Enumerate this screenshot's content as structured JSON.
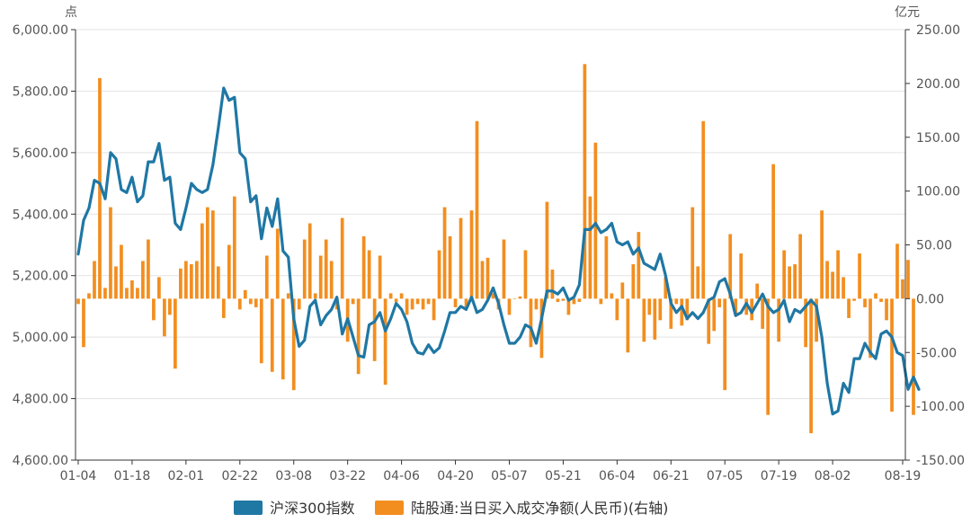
{
  "chart_data": {
    "type": "bar+line",
    "title": "",
    "left_axis": {
      "unit": "点",
      "ylim": [
        4600,
        6000
      ],
      "ticks": [
        "6,000.00",
        "5,800.00",
        "5,600.00",
        "5,400.00",
        "5,200.00",
        "5,000.00",
        "4,800.00",
        "4,600.00"
      ],
      "tick_values": [
        6000,
        5800,
        5600,
        5400,
        5200,
        5000,
        4800,
        4600
      ]
    },
    "right_axis": {
      "unit": "亿元",
      "ylim": [
        -150,
        250
      ],
      "ticks": [
        "250.00",
        "200.00",
        "150.00",
        "100.00",
        "50.00",
        "0.00",
        "-50.00",
        "-100.00",
        "-150.00"
      ],
      "tick_values": [
        250,
        200,
        150,
        100,
        50,
        0,
        -50,
        -100,
        -150
      ]
    },
    "x_ticks": [
      {
        "label": "01-04",
        "index": 0
      },
      {
        "label": "01-18",
        "index": 10
      },
      {
        "label": "02-01",
        "index": 20
      },
      {
        "label": "02-22",
        "index": 30
      },
      {
        "label": "03-08",
        "index": 40
      },
      {
        "label": "03-22",
        "index": 50
      },
      {
        "label": "04-06",
        "index": 60
      },
      {
        "label": "04-20",
        "index": 70
      },
      {
        "label": "05-07",
        "index": 80
      },
      {
        "label": "05-21",
        "index": 90
      },
      {
        "label": "06-04",
        "index": 100
      },
      {
        "label": "06-21",
        "index": 110
      },
      {
        "label": "07-05",
        "index": 120
      },
      {
        "label": "07-19",
        "index": 130
      },
      {
        "label": "08-02",
        "index": 140
      },
      {
        "label": "08-19",
        "index": 153
      }
    ],
    "n_points": 154,
    "series": [
      {
        "name": "沪深300指数",
        "type": "line",
        "axis": "left",
        "color": "#1f77a4",
        "values": [
          5270,
          5380,
          5420,
          5510,
          5500,
          5450,
          5600,
          5580,
          5480,
          5470,
          5520,
          5440,
          5460,
          5570,
          5570,
          5630,
          5510,
          5520,
          5370,
          5350,
          5420,
          5500,
          5480,
          5470,
          5480,
          5560,
          5680,
          5810,
          5770,
          5780,
          5600,
          5580,
          5440,
          5460,
          5320,
          5420,
          5360,
          5450,
          5280,
          5260,
          5060,
          4970,
          4990,
          5100,
          5120,
          5040,
          5070,
          5090,
          5130,
          5010,
          5060,
          5000,
          4940,
          4935,
          5040,
          5050,
          5080,
          5020,
          5060,
          5110,
          5090,
          5050,
          4980,
          4950,
          4945,
          4975,
          4950,
          4965,
          5020,
          5080,
          5080,
          5100,
          5090,
          5130,
          5080,
          5090,
          5120,
          5160,
          5110,
          5040,
          4980,
          4980,
          5000,
          5040,
          5030,
          4980,
          5060,
          5150,
          5150,
          5140,
          5160,
          5120,
          5130,
          5170,
          5350,
          5350,
          5370,
          5340,
          5350,
          5370,
          5310,
          5300,
          5310,
          5270,
          5290,
          5240,
          5230,
          5220,
          5270,
          5200,
          5110,
          5080,
          5100,
          5060,
          5080,
          5060,
          5080,
          5120,
          5130,
          5180,
          5190,
          5140,
          5070,
          5080,
          5110,
          5080,
          5110,
          5140,
          5100,
          5080,
          5090,
          5120,
          5050,
          5090,
          5080,
          5100,
          5120,
          5100,
          5000,
          4850,
          4750,
          4760,
          4850,
          4820,
          4930,
          4930,
          4980,
          4950,
          4930,
          5010,
          5020,
          5000,
          4950,
          4940,
          4830,
          4870,
          4830
        ]
      },
      {
        "name": "陆股通:当日买入成交净额(人民币)(右轴)",
        "type": "bar",
        "axis": "right",
        "color": "#f28e1f",
        "values": [
          -5,
          -45,
          5,
          35,
          205,
          10,
          85,
          30,
          50,
          10,
          17,
          10,
          35,
          55,
          -20,
          20,
          -35,
          -15,
          -65,
          28,
          35,
          32,
          35,
          70,
          85,
          82,
          30,
          -18,
          50,
          95,
          -10,
          8,
          -5,
          -8,
          -60,
          40,
          -68,
          65,
          -75,
          5,
          -85,
          -10,
          55,
          70,
          5,
          40,
          55,
          35,
          -10,
          75,
          -40,
          -5,
          -70,
          58,
          45,
          -58,
          40,
          -80,
          5,
          -3,
          5,
          -15,
          -10,
          -5,
          -10,
          -5,
          -20,
          45,
          85,
          58,
          -8,
          75,
          -8,
          82,
          165,
          35,
          38,
          5,
          -10,
          55,
          -15,
          0,
          2,
          45,
          -45,
          -10,
          -55,
          90,
          27,
          -3,
          -2,
          -15,
          -5,
          -3,
          218,
          95,
          145,
          -5,
          58,
          5,
          -20,
          15,
          -50,
          32,
          62,
          -40,
          -15,
          -38,
          -20,
          20,
          -28,
          -5,
          -25,
          -20,
          85,
          30,
          165,
          -42,
          -30,
          -8,
          -85,
          60,
          -15,
          42,
          -15,
          -20,
          14,
          -28,
          -108,
          125,
          -40,
          45,
          30,
          32,
          60,
          -45,
          -125,
          -40,
          82,
          35,
          25,
          45,
          20,
          -18,
          -2,
          42,
          -8,
          -55,
          5,
          -3,
          -20,
          -105,
          51,
          18,
          36,
          -108
        ]
      }
    ],
    "legend": {
      "placement": "bottom-center"
    },
    "grid": true
  },
  "colors": {
    "line": "#1f77a4",
    "bar": "#f28e1f",
    "grid": "#e3e3e3",
    "axis": "#333333",
    "text": "#555555"
  }
}
